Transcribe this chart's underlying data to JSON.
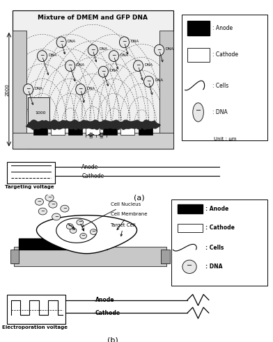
{
  "title_a": "Mixture of DMEM and GFP DNA",
  "label_a": "(a)",
  "label_b": "(b)",
  "targeting_voltage": "Targeting voltage",
  "electroporation_voltage": "Electroporation voltage",
  "legend_anode": ": Anode",
  "legend_cathode": ": Cathode",
  "legend_cells": ": Cells",
  "legend_dna": ": DNA",
  "unit": "Unit : μm",
  "dim_2000": "2000",
  "dim_1000": "1000",
  "dim_50a": "50",
  "dim_50b": "50",
  "anode_label": "Anode",
  "cathode_label": "Cathode",
  "cell_nucleus": "Cell Nucleus",
  "cell_membrane": "Cell Membrane",
  "target_cell": "Target Cell",
  "dna_label": "DNA"
}
